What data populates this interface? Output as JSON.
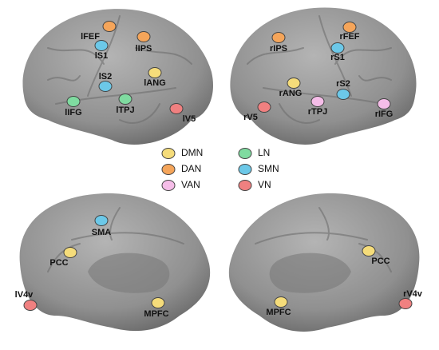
{
  "legend": [
    {
      "name": "DMN",
      "color": "#f5dc7a"
    },
    {
      "name": "LN",
      "color": "#7fdba0"
    },
    {
      "name": "DAN",
      "color": "#f5a55a"
    },
    {
      "name": "SMN",
      "color": "#6cc8e8"
    },
    {
      "name": "VAN",
      "color": "#f5bde8"
    },
    {
      "name": "VN",
      "color": "#f08080"
    }
  ],
  "brains": [
    {
      "nodes": [
        {
          "label": "lFEF",
          "color": "#f5a55a"
        },
        {
          "label": "lIPS",
          "color": "#f5a55a"
        },
        {
          "label": "lS1",
          "color": "#6cc8e8"
        },
        {
          "label": "lS2",
          "color": "#6cc8e8"
        },
        {
          "label": "lANG",
          "color": "#f5dc7a"
        },
        {
          "label": "lIFG",
          "color": "#7fdba0"
        },
        {
          "label": "lTPJ",
          "color": "#7fdba0"
        },
        {
          "label": "lV5",
          "color": "#f08080"
        }
      ]
    },
    {
      "nodes": [
        {
          "label": "rIPS",
          "color": "#f5a55a"
        },
        {
          "label": "rFEF",
          "color": "#f5a55a"
        },
        {
          "label": "rS1",
          "color": "#6cc8e8"
        },
        {
          "label": "rANG",
          "color": "#f5dc7a"
        },
        {
          "label": "rS2",
          "color": "#6cc8e8"
        },
        {
          "label": "rTPJ",
          "color": "#f5bde8"
        },
        {
          "label": "rV5",
          "color": "#f08080"
        },
        {
          "label": "rIFG",
          "color": "#f5bde8"
        }
      ]
    },
    {
      "nodes": [
        {
          "label": "SMA",
          "color": "#6cc8e8"
        },
        {
          "label": "PCC",
          "color": "#f5dc7a"
        },
        {
          "label": "lV4v",
          "color": "#f08080"
        },
        {
          "label": "MPFC",
          "color": "#f5dc7a"
        }
      ]
    },
    {
      "nodes": [
        {
          "label": "PCC",
          "color": "#f5dc7a"
        },
        {
          "label": "MPFC",
          "color": "#f5dc7a"
        },
        {
          "label": "rV4v",
          "color": "#f08080"
        }
      ]
    }
  ]
}
